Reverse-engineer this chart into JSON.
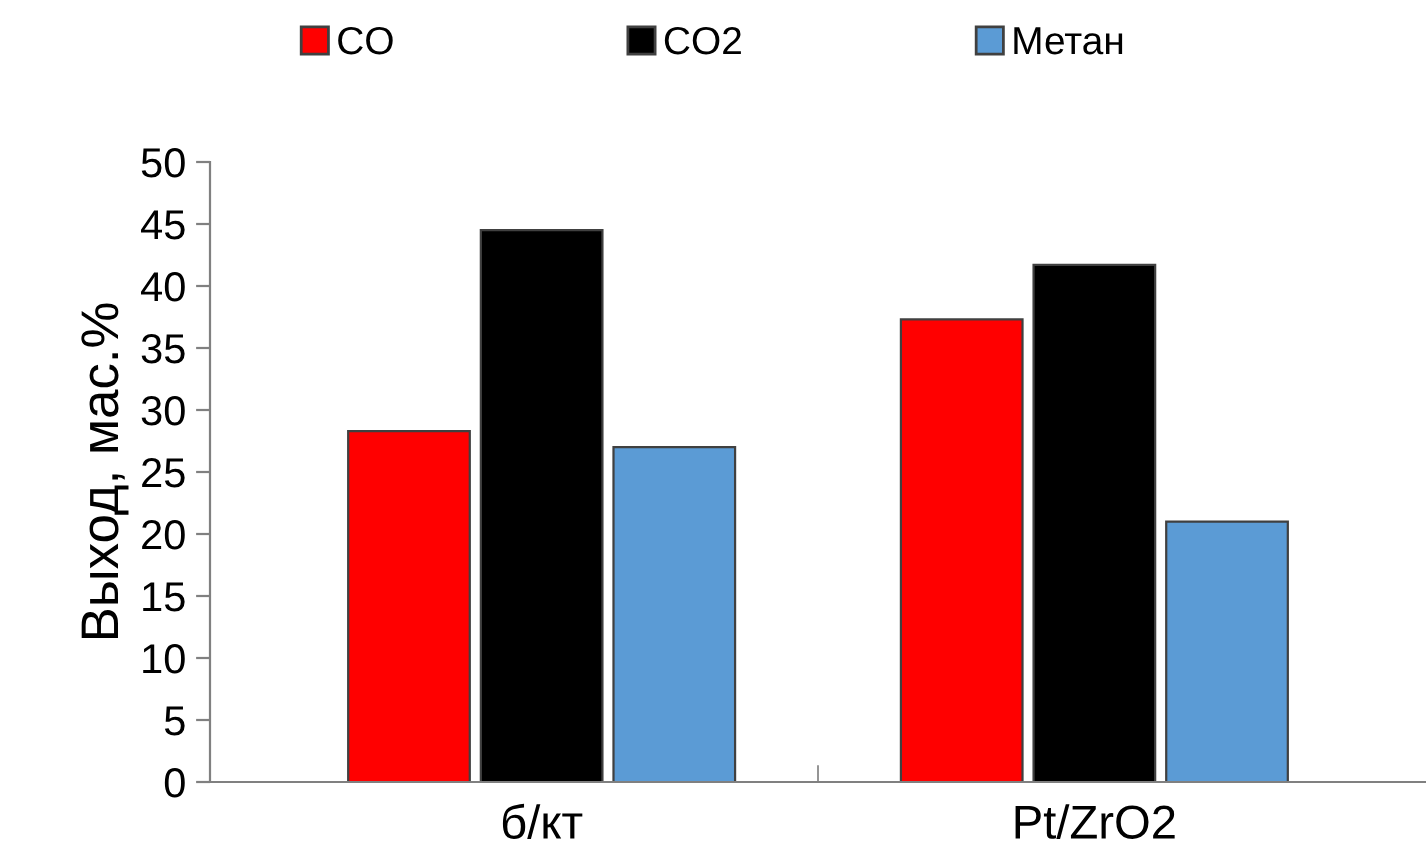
{
  "chart_data": {
    "type": "bar",
    "ylabel": "Выход, мас.%",
    "categories": [
      "б/кт",
      "Pt/ZrO2"
    ],
    "series": [
      {
        "name": "CO",
        "color": "#ff0000",
        "values": [
          28.3,
          37.3
        ]
      },
      {
        "name": "CO2",
        "color": "#000000",
        "values": [
          44.5,
          41.7
        ]
      },
      {
        "name": "Метан",
        "color": "#5b9bd5",
        "values": [
          27.0,
          21.0
        ]
      }
    ],
    "ylim": [
      0,
      50
    ],
    "yticks": [
      0,
      5,
      10,
      15,
      20,
      25,
      30,
      35,
      40,
      45,
      50
    ],
    "grid": false,
    "legend": "top"
  }
}
